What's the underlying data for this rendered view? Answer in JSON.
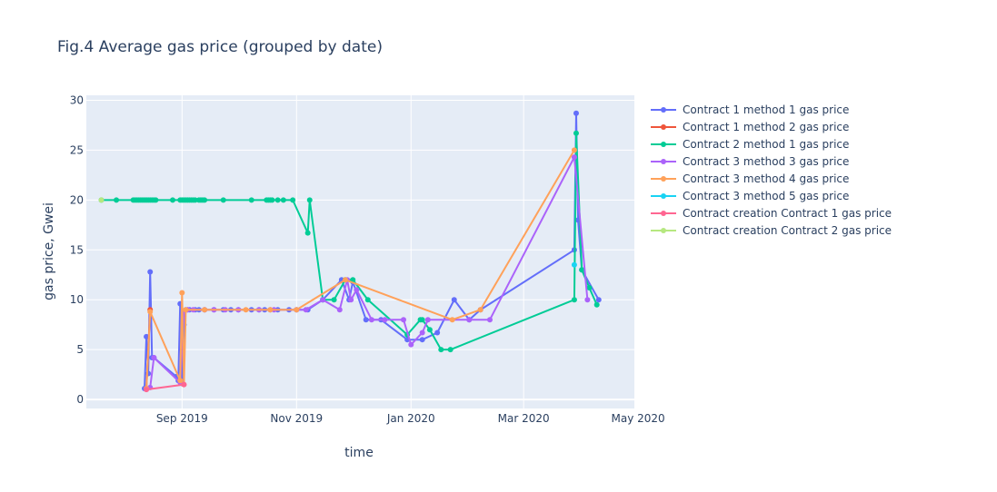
{
  "chart_data": {
    "type": "line",
    "title": "Fig.4 Average gas price (grouped by date)",
    "xlabel": "time",
    "ylabel": "gas price, Gwei",
    "x_type": "date",
    "xlim": [
      "2019-07-12",
      "2020-04-29"
    ],
    "ylim": [
      -0.9,
      30.5
    ],
    "x_ticks": [
      {
        "date": "2019-09-01",
        "label": "Sep 2019"
      },
      {
        "date": "2019-11-01",
        "label": "Nov 2019"
      },
      {
        "date": "2020-01-01",
        "label": "Jan 2020"
      },
      {
        "date": "2020-03-01",
        "label": "Mar 2020"
      },
      {
        "date": "2020-05-01",
        "label": "May 2020"
      }
    ],
    "y_ticks": [
      0,
      5,
      10,
      15,
      20,
      25,
      30
    ],
    "grid": true,
    "legend_position": "top-right",
    "series": [
      {
        "name": "Contract 1 method 1 gas price",
        "color": "#636efa",
        "x": [
          "2019-08-12",
          "2019-08-13",
          "2019-08-14",
          "2019-08-15",
          "2019-08-16",
          "2019-08-17",
          "2019-08-29",
          "2019-08-30",
          "2019-08-31",
          "2019-09-01",
          "2019-09-02",
          "2019-09-03",
          "2019-09-04",
          "2019-09-05",
          "2019-09-08",
          "2019-09-10",
          "2019-09-13",
          "2019-09-18",
          "2019-09-23",
          "2019-09-27",
          "2019-10-01",
          "2019-10-08",
          "2019-10-12",
          "2019-10-15",
          "2019-10-18",
          "2019-10-22",
          "2019-10-28",
          "2019-11-01",
          "2019-11-07",
          "2019-11-15",
          "2019-11-25",
          "2019-11-29",
          "2019-12-01",
          "2019-12-08",
          "2019-12-16",
          "2019-12-30",
          "2020-01-07",
          "2020-01-15",
          "2020-01-24",
          "2020-02-01",
          "2020-02-07",
          "2020-03-28",
          "2020-03-29",
          "2020-03-30",
          "2020-04-01",
          "2020-04-10"
        ],
        "y": [
          1.1,
          6.3,
          2.6,
          12.8,
          4.2,
          4.2,
          2.3,
          1.9,
          9.6,
          1.6,
          7.5,
          9,
          9,
          9,
          9,
          9,
          9,
          9,
          9,
          9,
          9,
          9,
          9,
          9,
          9,
          9,
          9,
          9,
          9,
          10,
          12,
          10,
          11.8,
          8,
          8,
          6,
          6,
          6.7,
          10,
          8,
          9,
          15,
          28.7,
          18,
          13,
          10
        ]
      },
      {
        "name": "Contract 1 method 2 gas price",
        "color": "#ef553b",
        "x": [
          "2019-08-13",
          "2019-08-15"
        ],
        "y": [
          1.1,
          9
        ]
      },
      {
        "name": "Contract 2 method 1 gas price",
        "color": "#00cc96",
        "x": [
          "2019-07-20",
          "2019-07-28",
          "2019-08-06",
          "2019-08-07",
          "2019-08-08",
          "2019-08-09",
          "2019-08-10",
          "2019-08-11",
          "2019-08-12",
          "2019-08-13",
          "2019-08-14",
          "2019-08-15",
          "2019-08-16",
          "2019-08-17",
          "2019-08-18",
          "2019-08-27",
          "2019-08-31",
          "2019-09-01",
          "2019-09-02",
          "2019-09-03",
          "2019-09-04",
          "2019-09-05",
          "2019-09-06",
          "2019-09-07",
          "2019-09-08",
          "2019-09-10",
          "2019-09-11",
          "2019-09-12",
          "2019-09-13",
          "2019-09-23",
          "2019-10-08",
          "2019-10-16",
          "2019-10-17",
          "2019-10-18",
          "2019-10-19",
          "2019-10-22",
          "2019-10-25",
          "2019-10-30",
          "2019-11-07",
          "2019-11-08",
          "2019-11-15",
          "2019-11-21",
          "2019-11-27",
          "2019-12-01",
          "2019-12-09",
          "2019-12-30",
          "2020-01-06",
          "2020-01-07",
          "2020-01-11",
          "2020-01-17",
          "2020-01-22",
          "2020-03-28",
          "2020-03-29",
          "2020-04-01",
          "2020-04-05",
          "2020-04-09"
        ],
        "y": [
          20,
          20,
          20,
          20,
          20,
          20,
          20,
          20,
          20,
          20,
          20,
          20,
          20,
          20,
          20,
          20,
          20,
          20,
          20,
          20,
          20,
          20,
          20,
          20,
          20,
          20,
          20,
          20,
          20,
          20,
          20,
          20,
          20,
          20,
          20,
          20,
          20,
          20,
          16.7,
          20,
          10,
          10,
          12,
          12,
          10,
          6.5,
          8,
          8,
          7,
          5,
          5,
          10,
          26.7,
          13,
          11.2,
          9.5
        ]
      },
      {
        "name": "Contract 3 method 3 gas price",
        "color": "#ab63fa",
        "x": [
          "2019-08-13",
          "2019-08-15",
          "2019-08-17",
          "2019-08-31",
          "2019-09-02",
          "2019-09-04",
          "2019-09-07",
          "2019-09-13",
          "2019-09-18",
          "2019-09-24",
          "2019-10-01",
          "2019-10-12",
          "2019-10-20",
          "2019-11-01",
          "2019-11-06",
          "2019-11-15",
          "2019-11-24",
          "2019-11-28",
          "2019-11-30",
          "2019-12-03",
          "2019-12-11",
          "2019-12-18",
          "2019-12-28",
          "2020-01-01",
          "2020-01-07",
          "2020-01-10",
          "2020-02-01",
          "2020-02-12",
          "2020-03-28",
          "2020-04-04"
        ],
        "y": [
          1.1,
          1.2,
          4.2,
          1.7,
          8.8,
          9,
          9,
          9,
          9,
          9,
          9,
          9,
          9,
          9,
          9,
          10,
          9,
          12,
          10,
          11,
          8,
          8,
          8,
          5.5,
          6.7,
          8,
          8,
          8,
          24.3,
          10
        ]
      },
      {
        "name": "Contract 3 method 4 gas price",
        "color": "#ffa15a",
        "x": [
          "2019-08-13",
          "2019-08-15",
          "2019-08-31",
          "2019-09-01",
          "2019-09-02",
          "2019-09-03",
          "2019-09-13",
          "2019-10-05",
          "2019-10-18",
          "2019-11-01",
          "2019-11-27",
          "2020-01-23",
          "2020-02-07",
          "2020-03-28"
        ],
        "y": [
          1.1,
          8.8,
          1.9,
          10.7,
          1.5,
          9,
          9,
          9,
          9,
          9,
          12,
          8,
          9,
          25
        ]
      },
      {
        "name": "Contract 3 method 5 gas price",
        "color": "#19d3f3",
        "x": [
          "2020-03-28"
        ],
        "y": [
          13.5
        ]
      },
      {
        "name": "Contract creation Contract 1 gas price",
        "color": "#ff6692",
        "x": [
          "2019-08-13",
          "2019-09-02"
        ],
        "y": [
          1,
          1.5
        ]
      },
      {
        "name": "Contract creation Contract 2 gas price",
        "color": "#b6e880",
        "x": [
          "2019-07-20"
        ],
        "y": [
          20
        ]
      }
    ]
  }
}
